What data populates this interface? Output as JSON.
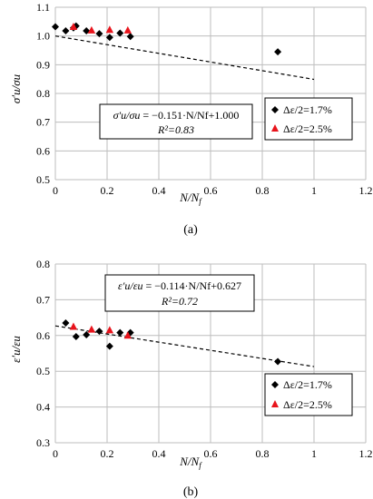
{
  "chart_data": [
    {
      "type": "scatter",
      "panel_label": "(a)",
      "xlabel_main": "N/N",
      "xlabel_sub": "f",
      "ylabel": "σ′u/σu",
      "xlim": [
        0,
        1.2
      ],
      "ylim": [
        0.5,
        1.1
      ],
      "xticks": [
        "0",
        "0.2",
        "0.4",
        "0.6",
        "0.8",
        "1",
        "1.2"
      ],
      "yticks": [
        "0.5",
        "0.6",
        "0.7",
        "0.8",
        "0.9",
        "1.0",
        "1.1"
      ],
      "grid": true,
      "legend_position": "right",
      "series": [
        {
          "name": "Δε/2=1.7%",
          "marker": "diamond",
          "color": "#000000",
          "points": [
            [
              0.0,
              1.032
            ],
            [
              0.04,
              1.018
            ],
            [
              0.07,
              1.028
            ],
            [
              0.08,
              1.035
            ],
            [
              0.12,
              1.018
            ],
            [
              0.17,
              1.008
            ],
            [
              0.21,
              0.995
            ],
            [
              0.25,
              1.01
            ],
            [
              0.29,
              0.998
            ],
            [
              0.86,
              0.945
            ]
          ]
        },
        {
          "name": "Δε/2=2.5%",
          "marker": "triangle",
          "color": "#e8141c",
          "points": [
            [
              0.07,
              1.032
            ],
            [
              0.14,
              1.02
            ],
            [
              0.21,
              1.022
            ],
            [
              0.28,
              1.02
            ]
          ]
        }
      ],
      "trendline": {
        "style": "dashed",
        "x": [
          0,
          1.0
        ],
        "y": [
          1.0,
          0.849
        ]
      },
      "equation": {
        "line1_lhs": "σ′u/σu",
        "line1_rhs": " = −0.151·N/Nf+1.000",
        "line2": "R²=0.83"
      }
    },
    {
      "type": "scatter",
      "panel_label": "(b)",
      "xlabel_main": "N/N",
      "xlabel_sub": "f",
      "ylabel": "ε′u/εu",
      "xlim": [
        0,
        1.2
      ],
      "ylim": [
        0.3,
        0.8
      ],
      "xticks": [
        "0",
        "0.2",
        "0.4",
        "0.6",
        "0.8",
        "1",
        "1.2"
      ],
      "yticks": [
        "0.3",
        "0.4",
        "0.5",
        "0.6",
        "0.7",
        "0.8"
      ],
      "grid": true,
      "legend_position": "right",
      "series": [
        {
          "name": "Δε/2=1.7%",
          "marker": "diamond",
          "color": "#000000",
          "points": [
            [
              0.04,
              0.635
            ],
            [
              0.08,
              0.597
            ],
            [
              0.12,
              0.602
            ],
            [
              0.17,
              0.612
            ],
            [
              0.21,
              0.57
            ],
            [
              0.25,
              0.608
            ],
            [
              0.29,
              0.608
            ],
            [
              0.86,
              0.527
            ]
          ]
        },
        {
          "name": "Δε/2=2.5%",
          "marker": "triangle",
          "color": "#e8141c",
          "points": [
            [
              0.07,
              0.625
            ],
            [
              0.14,
              0.617
            ],
            [
              0.21,
              0.615
            ],
            [
              0.28,
              0.6
            ]
          ]
        }
      ],
      "trendline": {
        "style": "dashed",
        "x": [
          0,
          1.0
        ],
        "y": [
          0.627,
          0.513
        ]
      },
      "equation": {
        "line1_lhs": "ε′u/εu",
        "line1_rhs": " = −0.114·N/Nf+0.627",
        "line2": "R²=0.72"
      }
    }
  ]
}
